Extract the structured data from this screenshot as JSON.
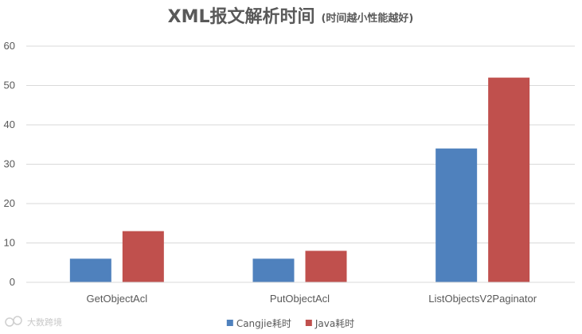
{
  "chart_data": {
    "type": "bar",
    "title": "XML报文解析时间",
    "subtitle": "(时间越小性能越好)",
    "categories": [
      "GetObjectAcl",
      "PutObjectAcl",
      "ListObjectsV2Paginator"
    ],
    "series": [
      {
        "name": "Cangjie耗时",
        "color": "#4F81BD",
        "values": [
          6,
          6,
          34
        ]
      },
      {
        "name": "Java耗时",
        "color": "#C0504D",
        "values": [
          13,
          8,
          52
        ]
      }
    ],
    "ylim": [
      0,
      60
    ],
    "yticks": [
      "0",
      "10",
      "20",
      "30",
      "40",
      "50",
      "60"
    ],
    "grid": true,
    "legend": "bottom"
  },
  "watermark": {
    "text": "大数跨境"
  }
}
